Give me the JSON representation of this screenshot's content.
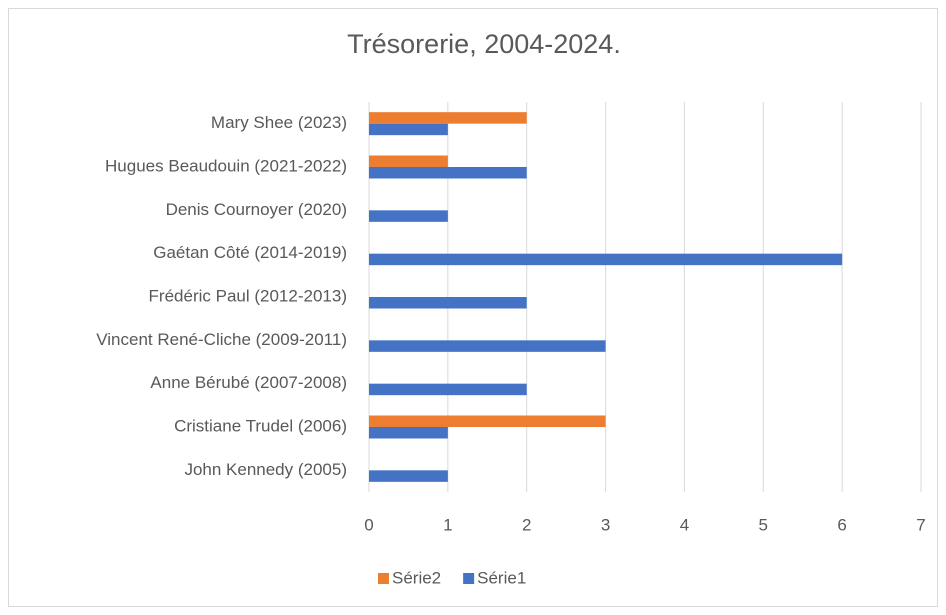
{
  "chart_data": {
    "type": "bar",
    "orientation": "horizontal",
    "title": "Trésorerie, 2004-2024.",
    "categories": [
      "Mary Shee (2023)",
      "Hugues Beaudouin (2021-2022)",
      "Denis Cournoyer (2020)",
      "Gaétan Côté (2014-2019)",
      "Frédéric Paul (2012-2013)",
      "Vincent René-Cliche (2009-2011)",
      "Anne Bérubé (2007-2008)",
      "Cristiane Trudel (2006)",
      "John Kennedy (2005)"
    ],
    "series": [
      {
        "name": "Série1",
        "color": "#4472c4",
        "values": [
          1,
          2,
          1,
          6,
          2,
          3,
          2,
          1,
          1
        ]
      },
      {
        "name": "Série2",
        "color": "#ed7d31",
        "values": [
          2,
          1,
          null,
          null,
          null,
          null,
          null,
          3,
          null
        ]
      }
    ],
    "xlim": [
      0,
      7
    ],
    "xticks": [
      0,
      1,
      2,
      3,
      4,
      5,
      6,
      7
    ],
    "grid": true,
    "legend": "bottom"
  }
}
